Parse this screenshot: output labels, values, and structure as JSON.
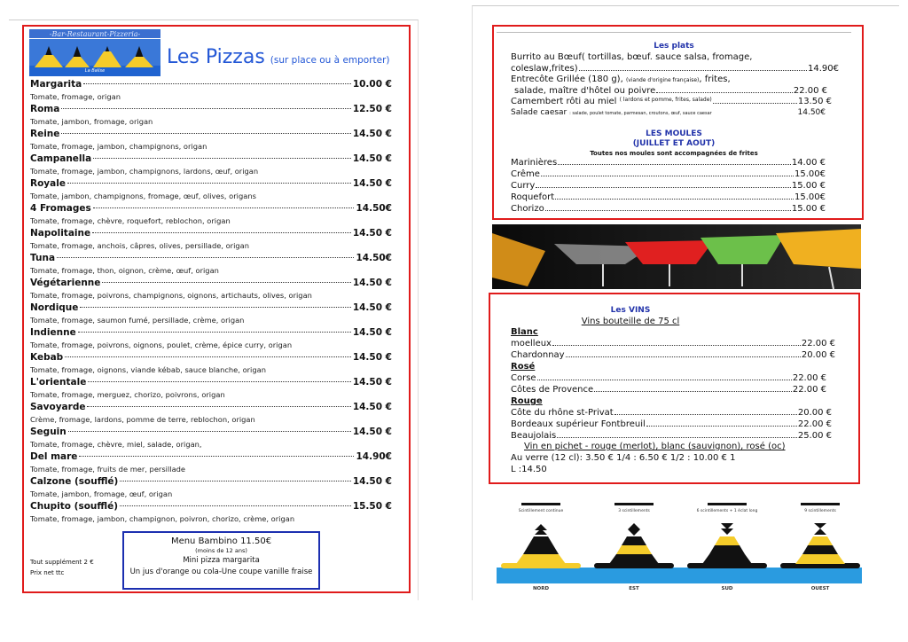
{
  "logo": {
    "text": "-Bar-Restaurant-Pizzeria-",
    "name": "La Balise"
  },
  "pizzas": {
    "title": "Les Pizzas",
    "subtitle": "(sur place ou à emporter)",
    "items": [
      {
        "name": "Margarita",
        "desc": "Tomate, fromage, origan",
        "price": "10.00 €"
      },
      {
        "name": "Roma",
        "desc": "Tomate, jambon, fromage, origan",
        "price": "12.50 €"
      },
      {
        "name": "Reine",
        "desc": "Tomate, fromage, jambon, champignons, origan",
        "price": "14.50 €"
      },
      {
        "name": "Campanella",
        "desc": "Tomate, fromage, jambon, champignons, lardons, œuf, origan",
        "price": "14.50 €"
      },
      {
        "name": "Royale",
        "desc": "Tomate, jambon, champignons, fromage, œuf, olives, origans",
        "price": "14.50 €"
      },
      {
        "name": "4 Fromages",
        "desc": "Tomate, fromage, chèvre, roquefort, reblochon, origan",
        "price": "14.50€"
      },
      {
        "name": "Napolitaine",
        "desc": "Tomate, fromage, anchois, câpres, olives, persillade, origan",
        "price": "14.50 €"
      },
      {
        "name": "Tuna",
        "desc": "Tomate, fromage, thon, oignon, crème, œuf, origan",
        "price": "14.50€"
      },
      {
        "name": "Végétarienne",
        "desc": "Tomate, fromage, poivrons, champignons, oignons, artichauts, olives, origan",
        "price": "14.50 €"
      },
      {
        "name": "Nordique",
        "desc": "Tomate, fromage, saumon fumé, persillade, crème, origan",
        "price": "14.50 €"
      },
      {
        "name": "Indienne",
        "desc": "Tomate, fromage, poivrons, oignons, poulet, crème, épice curry, origan",
        "price": "14.50 €"
      },
      {
        "name": "Kebab",
        "desc": "Tomate, fromage, oignons, viande kébab, sauce blanche, origan",
        "price": "14.50 €"
      },
      {
        "name": "L'orientale",
        "desc": "Tomate, fromage, merguez, chorizo, poivrons, origan",
        "price": "14.50 €"
      },
      {
        "name": "Savoyarde",
        "desc": "Crème, fromage, lardons, pomme de terre, reblochon, origan",
        "price": "14.50 €"
      },
      {
        "name": "Seguin",
        "desc": "Tomate, fromage, chèvre, miel, salade, origan,",
        "price": "14.50 €"
      },
      {
        "name": "Del mare",
        "desc": "Tomate, fromage, fruits de mer, persillade",
        "price": "14.90€"
      },
      {
        "name": "Calzone (soufflé)",
        "desc": "Tomate, jambon, fromage, œuf, origan",
        "price": "14.50 €"
      },
      {
        "name": "Chupito (soufflé)",
        "desc": "Tomate, fromage, jambon, champignon, poivron, chorizo, crème, origan",
        "price": "15.50 €"
      }
    ],
    "footnote": [
      "Tout supplément 2 €",
      "Prix net ttc"
    ],
    "bambino": {
      "title": "Menu Bambino   11.50€",
      "age": "(moins de 12 ans)",
      "line1": "Mini pizza margarita",
      "line2": "Un jus d'orange ou cola-Une coupe vanille fraise"
    }
  },
  "plats": {
    "title": "Les plats",
    "burrito_l1": "Burrito au Bœuf( tortillas, bœuf. sauce salsa, fromage,",
    "burrito_l2": "coleslaw,frites)",
    "burrito_price": "14.90€",
    "entrecote_l1": "Entrecôte Grillée (180 g),",
    "entrecote_note": "(viande d'origine française)",
    "entrecote_l1b": ", frites,",
    "entrecote_l2": "salade, maître d'hôtel ou poivre",
    "entrecote_price": "22.00 €",
    "camembert": "Camembert rôti au miel",
    "camembert_note": "( lardons et pomme, frites, salade)",
    "camembert_price": "13.50 €",
    "salade": "Salade caesar",
    "salade_note": ": salade, poulet tomate, parmesan, croutons, œuf, sauce caesar",
    "salade_price": "14.50€"
  },
  "moules": {
    "title1": "LES MOULES",
    "title2": "(JUILLET ET AOUT)",
    "subtitle": "Toutes nos moules sont accompagnées de frites",
    "items": [
      {
        "name": "Marinières",
        "price": "14.00 €"
      },
      {
        "name": "Crême",
        "price": "15.00€"
      },
      {
        "name": "Curry",
        "price": "15.00 €"
      },
      {
        "name": "Roquefort",
        "price": "15.00€"
      },
      {
        "name": "Chorizo",
        "price": "15.00 €"
      }
    ]
  },
  "vins": {
    "title": "Les VINS",
    "subtitle": "Vins bouteille de 75 cl",
    "groups": [
      {
        "label": "Blanc",
        "items": [
          {
            "name": "moelleux",
            "price": "22.00 €"
          },
          {
            "name": "Chardonnay",
            "price": "20.00 €"
          }
        ]
      },
      {
        "label": "Rosé",
        "items": [
          {
            "name": "Corse",
            "price": "22.00 €"
          },
          {
            "name": "Côtes de Provence",
            "price": "22.00 €"
          }
        ]
      },
      {
        "label": "Rouge",
        "items": [
          {
            "name": "Côte du rhône st-Privat",
            "price": "20.00 €"
          },
          {
            "name": "Bordeaux supérieur Fontbreuil",
            "price": "22.00 €"
          },
          {
            "name": "Beaujolais",
            "price": "25.00 €"
          }
        ]
      }
    ],
    "pichet": "Vin en pichet  - rouge (merlot), blanc (sauvignon), rosé (oc)",
    "verre_l1": "Au verre (12 cl): 3.50 €    1/4 : 6.50 €    1/2 : 10.00 €   1",
    "verre_l2": "L :14.50"
  },
  "buoys": [
    {
      "label": "NORD",
      "signal": "Scintillement continue"
    },
    {
      "label": "EST",
      "signal": "3 scintillements"
    },
    {
      "label": "SUD",
      "signal": "6 scintillements + 1 éclat long"
    },
    {
      "label": "OUEST",
      "signal": "9 scintillements"
    }
  ],
  "colors": {
    "frame": "#e01b1b",
    "title": "#2458d6",
    "bambino": "#1c2fb0",
    "buoy_yellow": "#f5cc2a",
    "sea": "#2a9be0"
  }
}
